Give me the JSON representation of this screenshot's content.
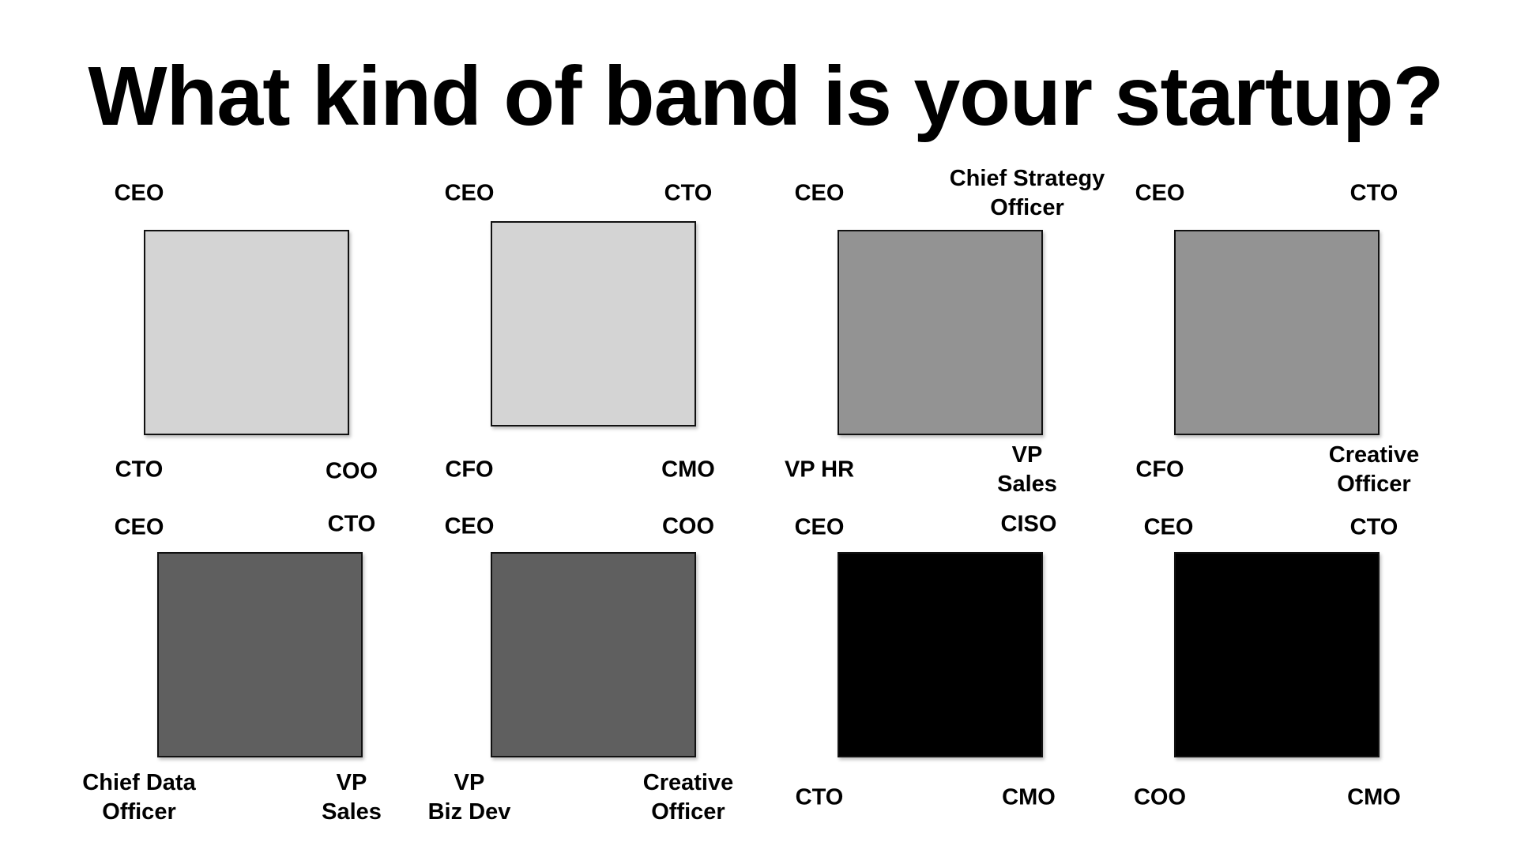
{
  "title": "What kind of band is your startup?",
  "bands": [
    {
      "color": "#d4d4d4",
      "labels": [
        "CEO",
        "CTO",
        "COO"
      ]
    },
    {
      "color": "#d4d4d4",
      "labels": [
        "CEO",
        "CTO",
        "CFO",
        "CMO"
      ]
    },
    {
      "color": "#939393",
      "labels": [
        "CEO",
        "Chief Strategy\nOfficer",
        "VP HR",
        "VP\nSales"
      ]
    },
    {
      "color": "#939393",
      "labels": [
        "CEO",
        "CTO",
        "CFO",
        "Creative\nOfficer"
      ]
    },
    {
      "color": "#5f5f5f",
      "labels": [
        "CEO",
        "CTO",
        "Chief Data\nOfficer",
        "VP\nSales"
      ]
    },
    {
      "color": "#5f5f5f",
      "labels": [
        "CEO",
        "COO",
        "VP\nBiz Dev",
        "Creative\nOfficer"
      ]
    },
    {
      "color": "#000000",
      "labels": [
        "CEO",
        "CISO",
        "CTO",
        "CMO"
      ]
    },
    {
      "color": "#000000",
      "labels": [
        "CEO",
        "CTO",
        "COO",
        "CMO"
      ]
    }
  ]
}
